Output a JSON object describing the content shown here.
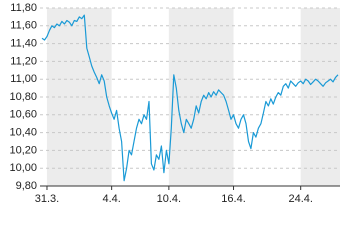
{
  "chart_data": {
    "type": "line",
    "color": "#1a9ad6",
    "values": [
      11.46,
      11.44,
      11.48,
      11.55,
      11.6,
      11.58,
      11.62,
      11.6,
      11.65,
      11.62,
      11.66,
      11.64,
      11.6,
      11.66,
      11.65,
      11.7,
      11.68,
      11.72,
      11.35,
      11.25,
      11.15,
      11.08,
      11.02,
      10.95,
      11.05,
      10.98,
      10.8,
      10.7,
      10.62,
      10.55,
      10.65,
      10.45,
      10.3,
      9.86,
      10.0,
      10.2,
      10.15,
      10.3,
      10.45,
      10.55,
      10.5,
      10.6,
      10.55,
      10.75,
      10.05,
      9.98,
      10.15,
      10.1,
      10.25,
      9.95,
      10.2,
      10.05,
      10.45,
      11.05,
      10.9,
      10.65,
      10.5,
      10.4,
      10.55,
      10.5,
      10.45,
      10.55,
      10.7,
      10.62,
      10.75,
      10.82,
      10.78,
      10.85,
      10.8,
      10.86,
      10.82,
      10.88,
      10.85,
      10.82,
      10.75,
      10.65,
      10.55,
      10.6,
      10.5,
      10.45,
      10.55,
      10.6,
      10.5,
      10.3,
      10.22,
      10.4,
      10.35,
      10.45,
      10.5,
      10.62,
      10.75,
      10.7,
      10.78,
      10.72,
      10.8,
      10.85,
      10.82,
      10.92,
      10.95,
      10.9,
      10.98,
      10.95,
      10.92,
      10.96,
      10.98,
      10.95,
      11.0,
      10.98,
      10.94,
      10.97,
      11.0,
      10.98,
      10.95,
      10.92,
      10.96,
      10.98,
      11.0,
      10.97,
      11.02,
      11.05
    ],
    "xlim": [
      0,
      119
    ],
    "xticks": [
      {
        "value": 2,
        "label": "31.3."
      },
      {
        "value": 28,
        "label": "4.4."
      },
      {
        "value": 51,
        "label": "10.4."
      },
      {
        "value": 77,
        "label": "16.4."
      },
      {
        "value": 104,
        "label": "24.4."
      }
    ],
    "ylim": [
      9.8,
      11.8
    ],
    "yticks": [
      {
        "value": 9.8,
        "label": "9,80"
      },
      {
        "value": 10.0,
        "label": "10,00"
      },
      {
        "value": 10.2,
        "label": "10,20"
      },
      {
        "value": 10.4,
        "label": "10,40"
      },
      {
        "value": 10.6,
        "label": "10,60"
      },
      {
        "value": 10.8,
        "label": "10,80"
      },
      {
        "value": 11.0,
        "label": "11,00"
      },
      {
        "value": 11.2,
        "label": "11,20"
      },
      {
        "value": 11.4,
        "label": "11,40"
      },
      {
        "value": 11.6,
        "label": "11,60"
      },
      {
        "value": 11.8,
        "label": "11,80"
      }
    ],
    "grid": true
  }
}
